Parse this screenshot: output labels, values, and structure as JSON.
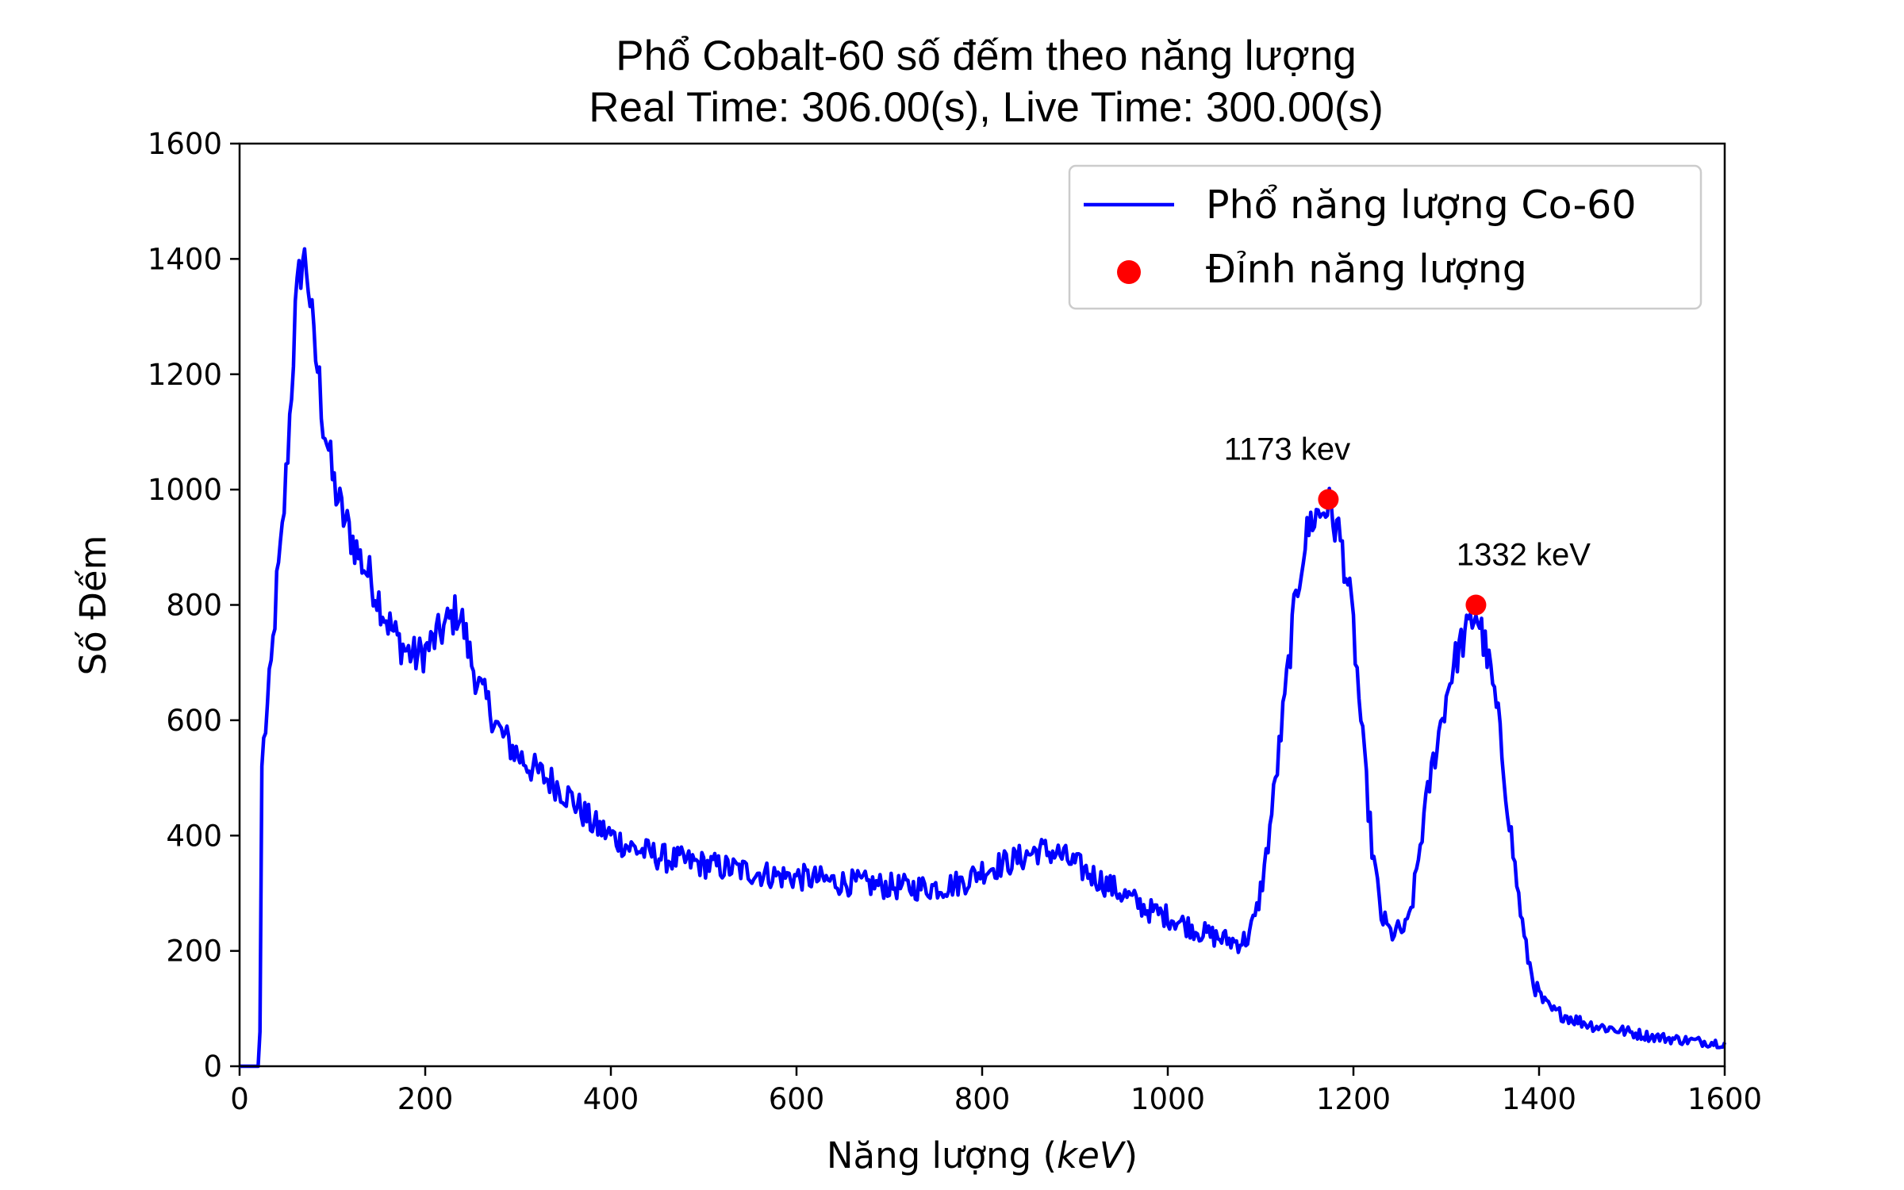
{
  "chart_data": {
    "type": "line",
    "title": "Phổ Cobalt-60 số đếm theo năng lượng",
    "subtitle": "Real Time: 306.00(s), Live Time: 300.00(s)",
    "xlabel_prefix": "Năng lượng (",
    "xlabel_unit": "keV",
    "xlabel_suffix": ")",
    "ylabel": "Số Đếm",
    "xlim": [
      0,
      1600
    ],
    "ylim": [
      0,
      1600
    ],
    "xticks": [
      0,
      200,
      400,
      600,
      800,
      1000,
      1200,
      1400,
      1600
    ],
    "yticks": [
      0,
      200,
      400,
      600,
      800,
      1000,
      1200,
      1400,
      1600
    ],
    "grid": false,
    "legend_position": "top-right",
    "series": [
      {
        "name": "Phổ năng lượng Co-60",
        "color": "#0000ff",
        "x": [
          0,
          20,
          22,
          24,
          26,
          30,
          35,
          40,
          45,
          50,
          55,
          60,
          65,
          68,
          72,
          75,
          80,
          85,
          90,
          95,
          100,
          110,
          120,
          130,
          140,
          150,
          160,
          170,
          180,
          190,
          200,
          210,
          220,
          230,
          235,
          240,
          250,
          260,
          270,
          280,
          290,
          300,
          320,
          340,
          360,
          380,
          400,
          420,
          440,
          460,
          480,
          500,
          520,
          540,
          560,
          580,
          600,
          620,
          640,
          660,
          680,
          700,
          720,
          740,
          760,
          780,
          800,
          820,
          840,
          860,
          880,
          900,
          920,
          940,
          960,
          980,
          1000,
          1020,
          1040,
          1060,
          1075,
          1085,
          1095,
          1105,
          1115,
          1125,
          1135,
          1145,
          1155,
          1165,
          1172,
          1178,
          1185,
          1192,
          1200,
          1210,
          1220,
          1230,
          1240,
          1250,
          1258,
          1265,
          1275,
          1285,
          1295,
          1305,
          1315,
          1325,
          1332,
          1340,
          1348,
          1356,
          1365,
          1375,
          1385,
          1395,
          1405,
          1415,
          1425,
          1440,
          1460,
          1480,
          1500,
          1520,
          1540,
          1560,
          1580,
          1600
        ],
        "values": [
          0,
          0,
          60,
          520,
          560,
          620,
          710,
          830,
          900,
          1020,
          1150,
          1300,
          1380,
          1400,
          1390,
          1350,
          1250,
          1200,
          1120,
          1080,
          1020,
          960,
          920,
          880,
          850,
          810,
          770,
          740,
          720,
          710,
          720,
          740,
          760,
          780,
          790,
          770,
          700,
          650,
          620,
          580,
          560,
          540,
          510,
          490,
          460,
          420,
          400,
          380,
          370,
          360,
          355,
          350,
          345,
          340,
          335,
          330,
          328,
          325,
          320,
          318,
          315,
          312,
          310,
          310,
          312,
          320,
          340,
          350,
          360,
          375,
          370,
          350,
          330,
          310,
          290,
          270,
          260,
          245,
          230,
          220,
          215,
          220,
          260,
          350,
          480,
          620,
          770,
          890,
          950,
          960,
          975,
          950,
          920,
          860,
          760,
          560,
          380,
          260,
          230,
          235,
          240,
          300,
          420,
          520,
          600,
          680,
          730,
          760,
          790,
          740,
          680,
          600,
          470,
          330,
          210,
          140,
          110,
          95,
          90,
          80,
          70,
          65,
          58,
          52,
          48,
          45,
          42,
          40
        ]
      }
    ],
    "peaks": {
      "name": "Đỉnh năng lượng",
      "color": "#ff0000",
      "points": [
        {
          "x": 1173,
          "y": 983,
          "label": "1173 kev"
        },
        {
          "x": 1332,
          "y": 800,
          "label": "1332 keV"
        }
      ]
    }
  }
}
